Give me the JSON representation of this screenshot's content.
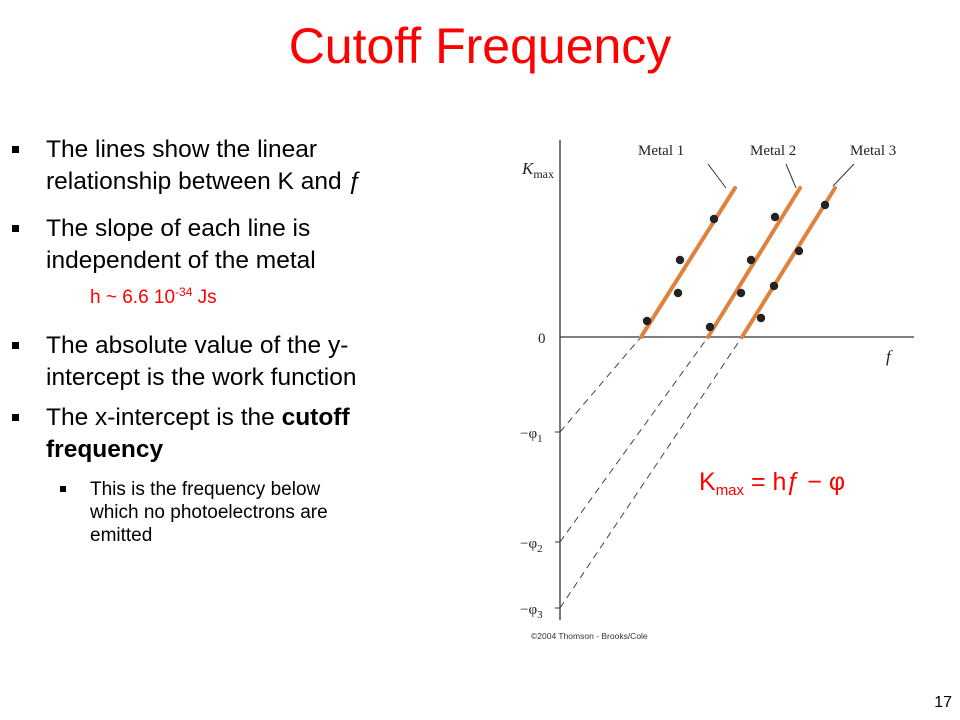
{
  "title": "Cutoff Frequency",
  "bullets": [
    {
      "line1": "The lines show the linear",
      "line2": "relationship between K and ƒ"
    },
    {
      "line1": "The slope of each line is",
      "line2": "independent of the metal"
    },
    {
      "line1": "The absolute value of the y-",
      "line2": "intercept is the work function"
    },
    {
      "line1_plain": "The x-intercept is the ",
      "line1_bold": "cutoff",
      "line2_bold": "frequency"
    }
  ],
  "sub_bullet": {
    "line1": "This is the frequency below",
    "line2": "which no photoelectrons are",
    "line3": "emitted"
  },
  "planck_note": {
    "prefix": "h ~ 6.6 10",
    "exponent": "-34",
    "suffix": " Js"
  },
  "graph": {
    "y_axis_label": "K",
    "y_axis_label_sub": "max",
    "x_axis_label": "f",
    "origin_label": "0",
    "metal_labels": [
      "Metal 1",
      "Metal 2",
      "Metal 3"
    ],
    "intercept_labels": [
      {
        "prefix": "−φ",
        "sub": "1"
      },
      {
        "prefix": "−φ",
        "sub": "2"
      },
      {
        "prefix": "−φ",
        "sub": "3"
      }
    ],
    "line_color": "#e0813d",
    "copyright": "©2004 Thomson - Brooks/Cole"
  },
  "equation": {
    "k": "K",
    "sub": "max",
    "rest": " = hƒ − φ"
  },
  "page_number": "17"
}
